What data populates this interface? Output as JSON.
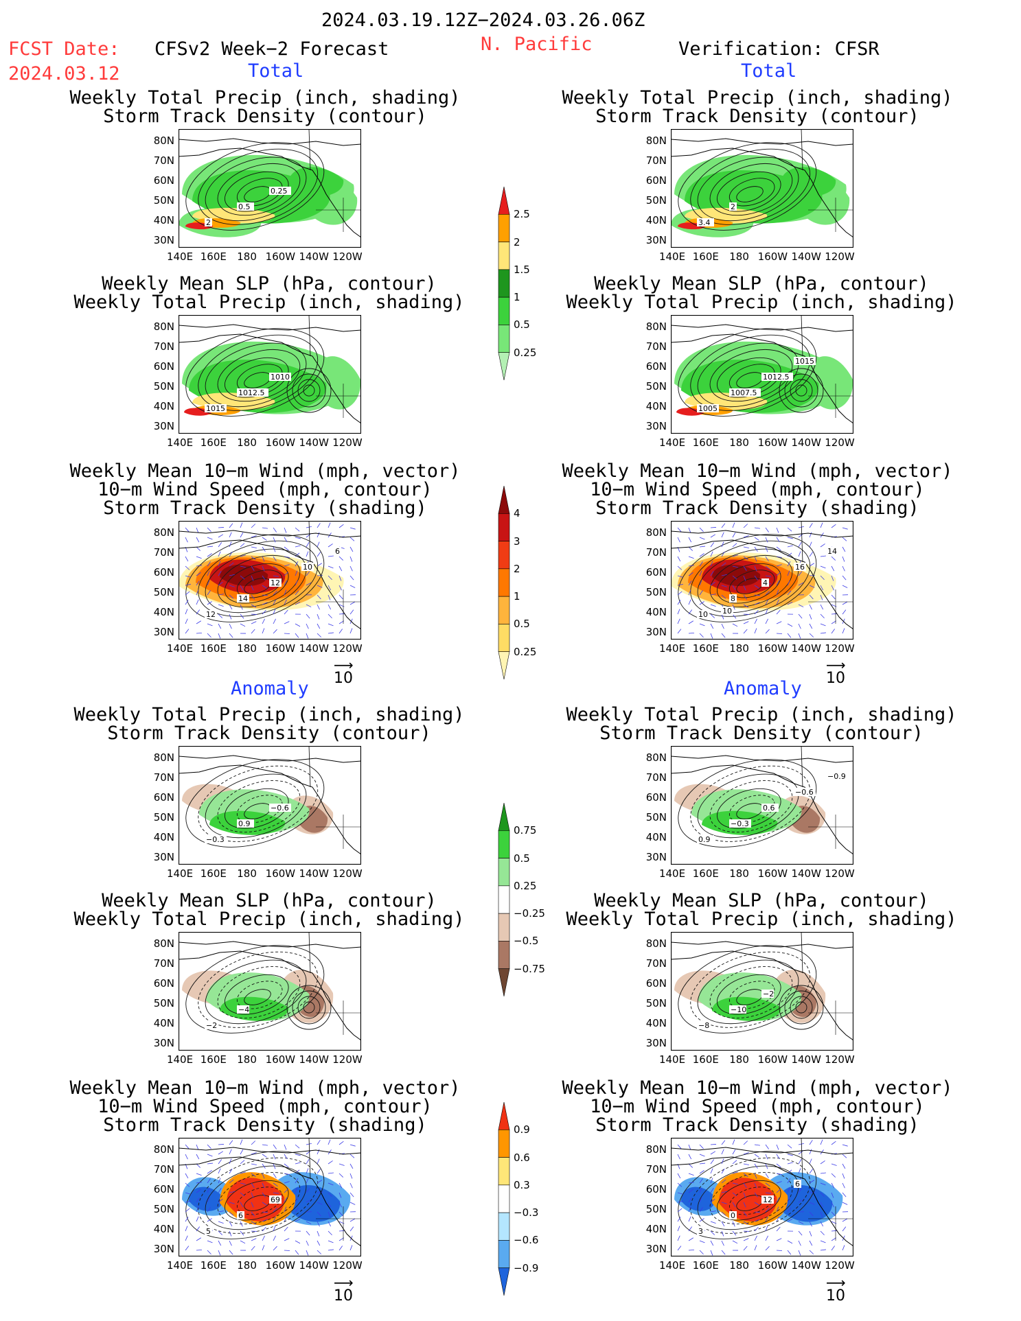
{
  "header": {
    "date_range": "2024.03.19.12Z−2024.03.26.06Z",
    "fcst_label": "FCST Date:",
    "fcst_date": "2024.03.12",
    "forecast_title": "CFSv2 Week−2 Forecast",
    "region": "N. Pacific",
    "verification_title": "Verification: CFSR"
  },
  "sections": {
    "total": "Total",
    "anomaly": "Anomaly"
  },
  "titles": {
    "precip_storm": [
      "Weekly Total Precip (inch, shading)",
      "Storm Track Density (contour)"
    ],
    "slp_precip": [
      "Weekly Mean SLP (hPa, contour)",
      "Weekly Total Precip (inch, shading)"
    ],
    "wind_storm": [
      "Weekly Mean 10−m Wind (mph, vector)",
      "10−m Wind Speed (mph, contour)",
      "Storm Track Density (shading)"
    ]
  },
  "axes": {
    "lat_labels": [
      "80N",
      "70N",
      "60N",
      "50N",
      "40N",
      "30N"
    ],
    "lon_labels": [
      "140E",
      "160E",
      "180",
      "160W",
      "140W",
      "120W"
    ]
  },
  "vector_reference": "10",
  "colorbars": {
    "precip_total": {
      "levels": [
        "0.25",
        "0.5",
        "1",
        "1.5",
        "2",
        "2.5"
      ],
      "colors": [
        "#b4f0b4",
        "#78e678",
        "#3cd23c",
        "#1e961e",
        "#ffe678",
        "#ffa000",
        "#e61e1e"
      ]
    },
    "storm_total": {
      "levels": [
        "0.25",
        "0.5",
        "1",
        "2",
        "3",
        "4"
      ],
      "colors": [
        "#fff5b4",
        "#ffdc64",
        "#ffb43c",
        "#ff7800",
        "#f03c14",
        "#c81414",
        "#8c0a0a"
      ]
    },
    "precip_anom": {
      "levels": [
        "0.75",
        "0.5",
        "0.25",
        "−0.25",
        "−0.5",
        "−0.75"
      ],
      "colors": [
        "#1e961e",
        "#3cd23c",
        "#96e696",
        "#ffffff",
        "#e6c8b4",
        "#aa7864",
        "#6e4632"
      ]
    },
    "storm_anom": {
      "levels": [
        "0.9",
        "0.6",
        "0.3",
        "−0.3",
        "−0.6",
        "−0.9"
      ],
      "colors": [
        "#f03214",
        "#ff9600",
        "#ffe678",
        "#ffffff",
        "#b4e6ff",
        "#5aaaf0",
        "#1e64dc"
      ]
    }
  },
  "contour_labels": {
    "f_prec_tot": [
      "2",
      "0.5",
      "0.25"
    ],
    "v_prec_tot": [
      "3.4",
      "2"
    ],
    "f_slp_tot": [
      "1015",
      "1012.5",
      "1010"
    ],
    "v_slp_tot": [
      "1005",
      "1007.5",
      "1012.5",
      "1015"
    ],
    "f_wind_tot": [
      "12",
      "14",
      "12",
      "10",
      "6"
    ],
    "v_wind_tot": [
      "10",
      "8",
      "4",
      "16",
      "14",
      "10"
    ],
    "f_prec_anom": [
      "−0.3",
      "0.9",
      "−0.6"
    ],
    "v_prec_anom": [
      "0.9",
      "−0.3",
      "0.6",
      "−0.6",
      "−0.9"
    ],
    "f_slp_anom": [
      "−2",
      "−4"
    ],
    "v_slp_anom": [
      "−8",
      "−10",
      "−2"
    ],
    "f_wind_anom": [
      "5",
      "6",
      "69"
    ],
    "v_wind_anom": [
      "3",
      "0",
      "12",
      "6"
    ]
  }
}
